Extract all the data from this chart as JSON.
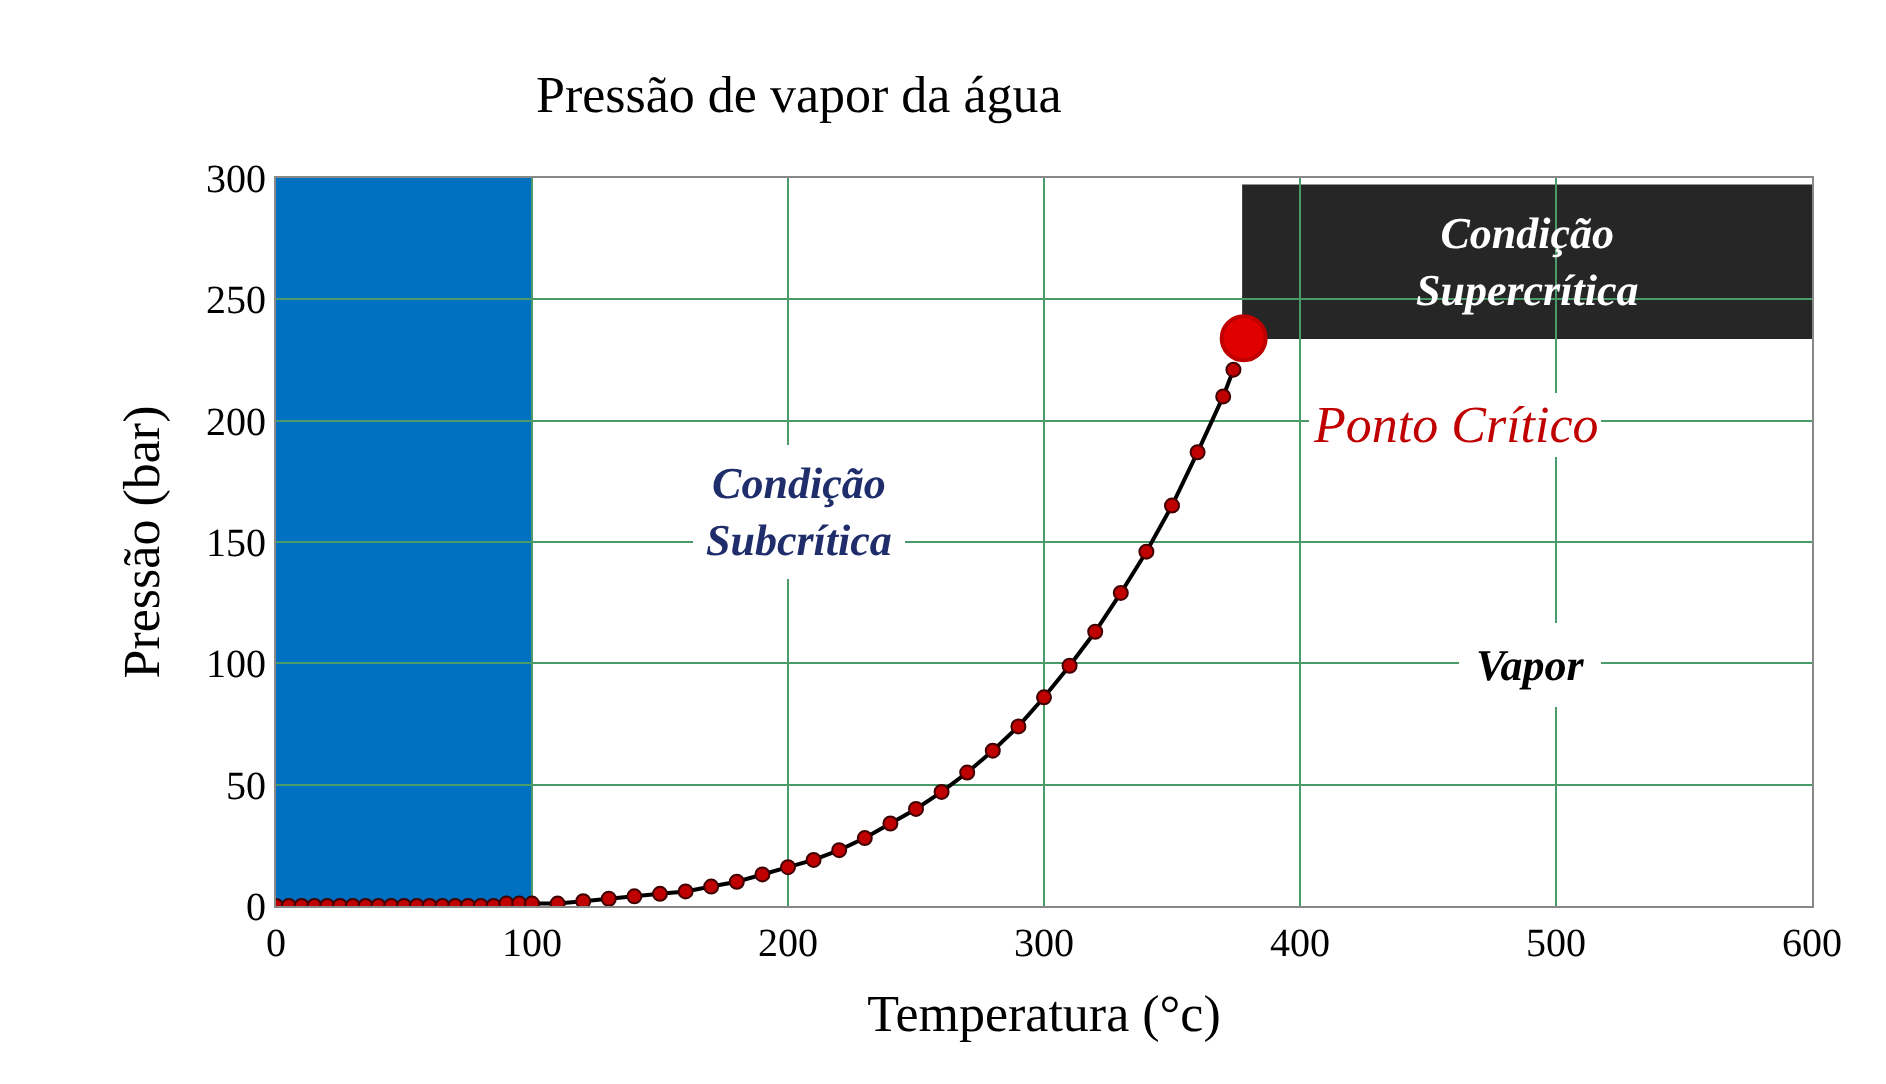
{
  "chart_data": {
    "type": "line",
    "title": "Pressão de vapor da água",
    "xlabel": "Temperatura (°c)",
    "ylabel": "Pressão (bar)",
    "xlim": [
      0,
      600
    ],
    "xticks": [
      0,
      100,
      200,
      300,
      400,
      500,
      600
    ],
    "ylim": [
      0,
      300
    ],
    "yticks": [
      0,
      50,
      100,
      150,
      200,
      250,
      300
    ],
    "grid": true,
    "legend": false,
    "marker": "circle",
    "line_style": "solid",
    "series": [
      {
        "color": "#c00000",
        "x": [
          0,
          5,
          10,
          15,
          20,
          25,
          30,
          35,
          40,
          45,
          50,
          55,
          60,
          65,
          70,
          75,
          80,
          85,
          90,
          95,
          100,
          110,
          120,
          130,
          140,
          150,
          160,
          170,
          180,
          190,
          200,
          210,
          220,
          230,
          240,
          250,
          260,
          270,
          280,
          290,
          300,
          310,
          320,
          330,
          340,
          350,
          360,
          370,
          374
        ],
        "values": [
          0,
          0,
          0,
          0,
          0,
          0,
          0,
          0,
          0,
          0,
          0,
          0,
          0,
          0,
          0,
          0,
          0,
          0,
          1,
          1,
          1,
          1,
          2,
          3,
          4,
          5,
          6,
          8,
          10,
          13,
          16,
          19,
          23,
          28,
          34,
          40,
          47,
          55,
          64,
          74,
          86,
          99,
          113,
          129,
          146,
          165,
          187,
          210,
          221
        ]
      },
      {
        "type": "scatter",
        "color": "#e00000",
        "x": [
          378
        ],
        "values": [
          234
        ]
      }
    ],
    "bands": [
      {
        "axis": "x",
        "from": 0,
        "to": 100,
        "color": "#0070c0"
      }
    ],
    "annotations": [
      "Condição Supercrítica",
      "Condição Subcrítica",
      "Vapor",
      {
        "text": "Ponto Crítico",
        "x": 378,
        "y": 234
      }
    ]
  }
}
